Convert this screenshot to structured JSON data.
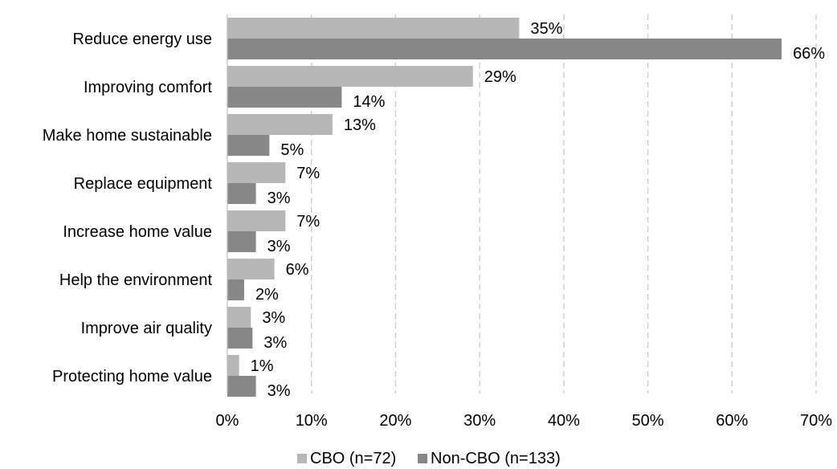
{
  "chart_data": {
    "type": "bar",
    "orientation": "horizontal",
    "title": "",
    "xlabel": "",
    "ylabel": "",
    "xlim": [
      0,
      70
    ],
    "x_ticks": [
      0,
      10,
      20,
      30,
      40,
      50,
      60,
      70
    ],
    "x_tick_labels": [
      "0%",
      "10%",
      "20%",
      "30%",
      "40%",
      "50%",
      "60%",
      "70%"
    ],
    "grid": "vertical dashed",
    "legend_position": "bottom",
    "categories": [
      "Reduce energy use",
      "Improving comfort",
      "Make home sustainable",
      "Replace equipment",
      "Increase home value",
      "Help the environment",
      "Improve air quality",
      "Protecting home value"
    ],
    "series": [
      {
        "name": "CBO (n=72)",
        "color": "#b7b7b7",
        "values": [
          35,
          29,
          13,
          7,
          7,
          6,
          3,
          1
        ],
        "labels": [
          "35%",
          "29%",
          "13%",
          "7%",
          "7%",
          "6%",
          "3%",
          "1%"
        ],
        "raw_values": [
          34.7,
          29.2,
          12.5,
          6.9,
          6.9,
          5.6,
          2.8,
          1.4
        ]
      },
      {
        "name": "Non-CBO (n=133)",
        "color": "#878787",
        "values": [
          66,
          14,
          5,
          3,
          3,
          2,
          3,
          3
        ],
        "labels": [
          "66%",
          "14%",
          "5%",
          "3%",
          "3%",
          "2%",
          "3%",
          "3%"
        ],
        "raw_values": [
          65.9,
          13.6,
          5.0,
          3.4,
          3.4,
          2.0,
          3.0,
          3.4
        ]
      }
    ]
  }
}
